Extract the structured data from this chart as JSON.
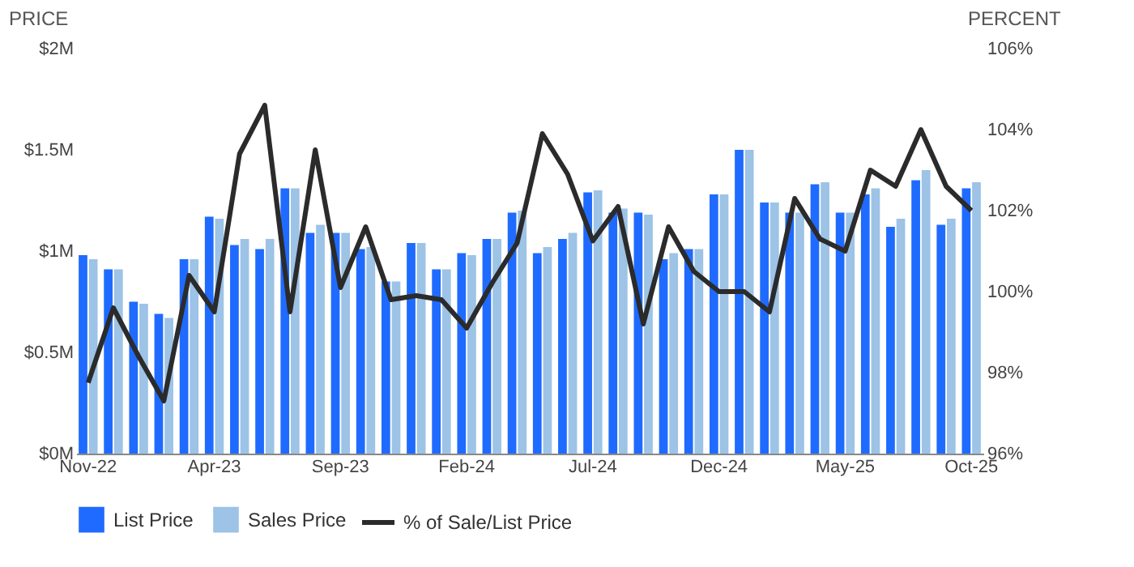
{
  "chart_data": {
    "type": "bar",
    "ylabel": "PRICE",
    "y2label": "PERCENT",
    "categories": [
      "Nov-22",
      null,
      null,
      null,
      null,
      "Apr-23",
      null,
      null,
      null,
      null,
      "Sep-23",
      null,
      null,
      null,
      null,
      "Feb-24",
      null,
      null,
      null,
      null,
      "Jul-24",
      null,
      null,
      null,
      null,
      "Dec-24",
      null,
      null,
      null,
      null,
      "May-25",
      null,
      null,
      null,
      null,
      "Oct-25"
    ],
    "series": [
      {
        "name": "% of Sale/List Price",
        "type": "line",
        "axis": "y2",
        "color": "#2b2b2b",
        "values": [
          97.75,
          99.6,
          98.4,
          97.3,
          100.4,
          99.5,
          103.4,
          104.6,
          99.5,
          103.5,
          100.1,
          101.6,
          99.8,
          99.9,
          99.8,
          99.1,
          100.2,
          101.2,
          103.9,
          102.9,
          101.25,
          102.1,
          99.2,
          101.6,
          100.5,
          100.0,
          100.0,
          99.5,
          102.3,
          101.3,
          101.0,
          103.0,
          102.6,
          104.0,
          102.6,
          102.0
        ]
      },
      {
        "name": "List Price",
        "color": "#1f6bff",
        "values": [
          0.98,
          0.91,
          0.75,
          0.69,
          0.96,
          1.17,
          1.03,
          1.01,
          1.31,
          1.09,
          1.09,
          1.01,
          0.85,
          1.04,
          0.91,
          0.99,
          1.06,
          1.19,
          0.99,
          1.06,
          1.29,
          1.19,
          1.19,
          0.96,
          1.01,
          1.28,
          1.5,
          1.24,
          1.19,
          1.33,
          1.19,
          1.28,
          1.12,
          1.35,
          1.13,
          1.31
        ]
      },
      {
        "name": "Sales Price",
        "color": "#9dc3e6",
        "values": [
          0.96,
          0.91,
          0.74,
          0.67,
          0.96,
          1.16,
          1.06,
          1.06,
          1.31,
          1.13,
          1.09,
          1.02,
          0.85,
          1.04,
          0.91,
          0.98,
          1.06,
          1.2,
          1.02,
          1.09,
          1.3,
          1.21,
          1.18,
          0.99,
          1.01,
          1.28,
          1.5,
          1.24,
          1.19,
          1.34,
          1.19,
          1.31,
          1.16,
          1.4,
          1.16,
          1.34
        ]
      }
    ],
    "ylim": [
      0,
      2
    ],
    "yticks": [
      {
        "value": 0,
        "label": "$0M"
      },
      {
        "value": 0.5,
        "label": "$0.5M"
      },
      {
        "value": 1,
        "label": "$1M"
      },
      {
        "value": 1.5,
        "label": "$1.5M"
      },
      {
        "value": 2,
        "label": "$2M"
      }
    ],
    "y2lim": [
      96,
      106
    ],
    "y2ticks": [
      {
        "value": 96,
        "label": "96%"
      },
      {
        "value": 98,
        "label": "98%"
      },
      {
        "value": 100,
        "label": "100%"
      },
      {
        "value": 102,
        "label": "102%"
      },
      {
        "value": 104,
        "label": "104%"
      },
      {
        "value": 106,
        "label": "106%"
      }
    ],
    "legend": "bottom",
    "grid": false,
    "marker": "none",
    "line_style": "solid"
  }
}
